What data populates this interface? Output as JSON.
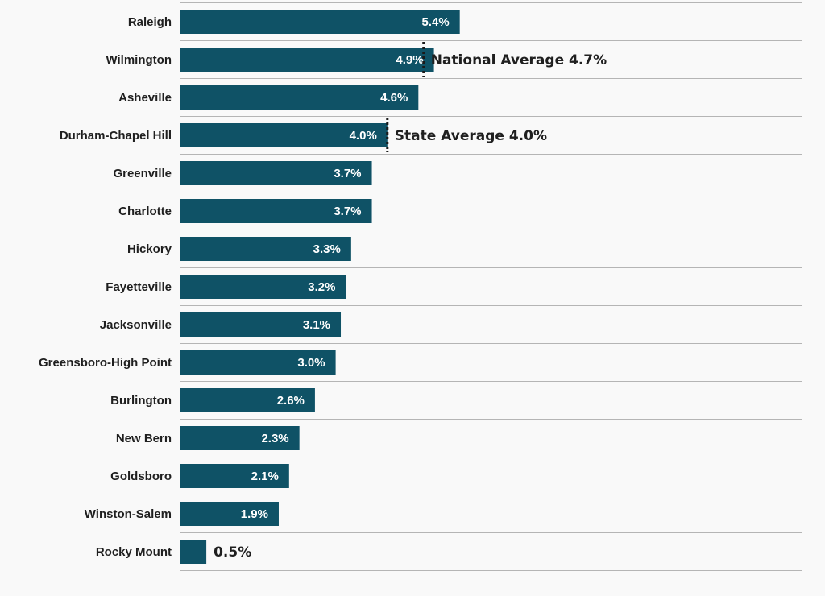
{
  "chart_data": {
    "type": "bar",
    "orientation": "horizontal",
    "categories": [
      "Raleigh",
      "Wilmington",
      "Asheville",
      "Durham-Chapel Hill",
      "Greenville",
      "Charlotte",
      "Hickory",
      "Fayetteville",
      "Jacksonville",
      "Greensboro-High Point",
      "Burlington",
      "New Bern",
      "Goldsboro",
      "Winston-Salem",
      "Rocky Mount"
    ],
    "values": [
      5.4,
      4.9,
      4.6,
      4.0,
      3.7,
      3.7,
      3.3,
      3.2,
      3.1,
      3.0,
      2.6,
      2.3,
      2.1,
      1.9,
      0.5
    ],
    "value_labels": [
      "5.4%",
      "4.9%",
      "4.6%",
      "4.0%",
      "3.7%",
      "3.7%",
      "3.3%",
      "3.2%",
      "3.1%",
      "3.0%",
      "2.6%",
      "2.3%",
      "2.1%",
      "1.9%",
      "0.5%"
    ],
    "title": "",
    "xlabel": "",
    "ylabel": "",
    "bar_color": "#0f5266",
    "reference_lines": [
      {
        "label": "National Average 4.7%",
        "value": 4.7
      },
      {
        "label": "State Average 4.0%",
        "value": 4.0
      }
    ],
    "grid": "horizontal row separators",
    "legend": "none"
  }
}
